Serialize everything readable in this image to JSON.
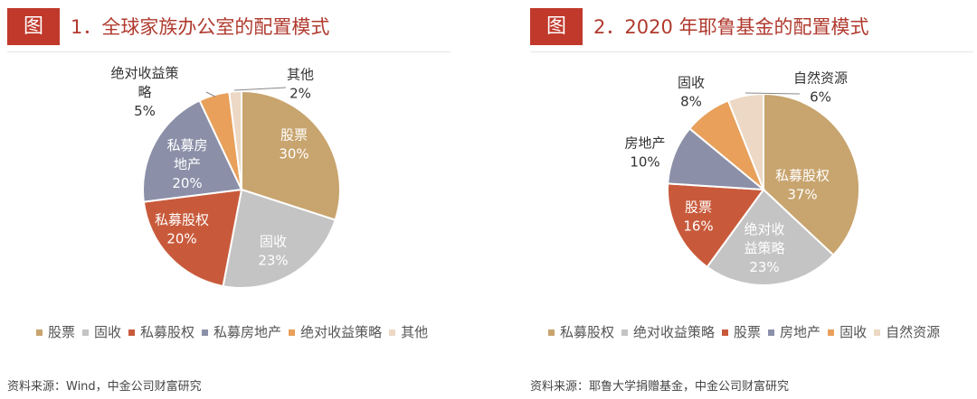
{
  "panels": [
    {
      "badge": "图",
      "title": "1．全球家族办公室的配置模式",
      "source": "资料来源：Wind，中金公司财富研究"
    },
    {
      "badge": "图",
      "title": "2．2020 年耶鲁基金的配置模式",
      "source": "资料来源：耶鲁大学捐赠基金，中金公司财富研究"
    }
  ],
  "chart_data": [
    {
      "type": "pie",
      "title": "1．全球家族办公室的配置模式",
      "slices": [
        {
          "label": "股票",
          "value": 30,
          "color": "#c8a46e"
        },
        {
          "label": "固收",
          "value": 23,
          "color": "#c4c4c4"
        },
        {
          "label": "私募股权",
          "value": 20,
          "color": "#c85a3b"
        },
        {
          "label": "私募房地产",
          "value": 20,
          "color": "#8b90a8"
        },
        {
          "label": "绝对收益策略",
          "value": 5,
          "color": "#e8a05a"
        },
        {
          "label": "其他",
          "value": 2,
          "color": "#ecd8c4"
        }
      ],
      "slice_labels": [
        {
          "lines": [
            "股票",
            "30%"
          ],
          "color": "#ffffff"
        },
        {
          "lines": [
            "固收",
            "23%"
          ],
          "color": "#ffffff"
        },
        {
          "lines": [
            "私募股权",
            "20%"
          ],
          "color": "#ffffff"
        },
        {
          "lines": [
            "私募房",
            "地产",
            "20%"
          ],
          "color": "#ffffff"
        },
        {
          "lines": [
            "绝对收益策",
            "略",
            "5%"
          ],
          "color": "#333333"
        },
        {
          "lines": [
            "其他",
            "2%"
          ],
          "color": "#333333"
        }
      ],
      "legend": [
        "股票",
        "固收",
        "私募股权",
        "私募房地产",
        "绝对收益策略",
        "其他"
      ]
    },
    {
      "type": "pie",
      "title": "2．2020 年耶鲁基金的配置模式",
      "slices": [
        {
          "label": "私募股权",
          "value": 37,
          "color": "#c8a46e"
        },
        {
          "label": "绝对收益策略",
          "value": 23,
          "color": "#c4c4c4"
        },
        {
          "label": "股票",
          "value": 16,
          "color": "#c85a3b"
        },
        {
          "label": "房地产",
          "value": 10,
          "color": "#8b90a8"
        },
        {
          "label": "固收",
          "value": 8,
          "color": "#e8a05a"
        },
        {
          "label": "自然资源",
          "value": 6,
          "color": "#ecd8c4"
        }
      ],
      "slice_labels": [
        {
          "lines": [
            "私募股权",
            "37%"
          ],
          "color": "#ffffff"
        },
        {
          "lines": [
            "绝对收",
            "益策略",
            "23%"
          ],
          "color": "#ffffff"
        },
        {
          "lines": [
            "股票",
            "16%"
          ],
          "color": "#ffffff"
        },
        {
          "lines": [
            "房地产",
            "10%"
          ],
          "color": "#333333"
        },
        {
          "lines": [
            "固收",
            "8%"
          ],
          "color": "#333333"
        },
        {
          "lines": [
            "自然资源",
            "6%"
          ],
          "color": "#333333"
        }
      ],
      "legend": [
        "私募股权",
        "绝对收益策略",
        "股票",
        "房地产",
        "固收",
        "自然资源"
      ]
    }
  ]
}
